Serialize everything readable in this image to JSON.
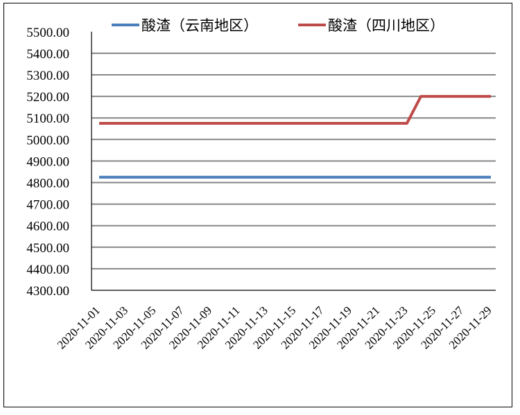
{
  "chart_data": {
    "type": "line",
    "title": "",
    "xlabel": "",
    "ylabel": "",
    "ylim": [
      4300,
      5500
    ],
    "y_ticks": [
      "4300.00",
      "4400.00",
      "4500.00",
      "4600.00",
      "4700.00",
      "4800.00",
      "4900.00",
      "5000.00",
      "5100.00",
      "5200.00",
      "5300.00",
      "5400.00",
      "5500.00"
    ],
    "grid": true,
    "legend_position": "top",
    "categories": [
      "2020-11-01",
      "2020-11-02",
      "2020-11-03",
      "2020-11-04",
      "2020-11-05",
      "2020-11-06",
      "2020-11-07",
      "2020-11-08",
      "2020-11-09",
      "2020-11-10",
      "2020-11-11",
      "2020-11-12",
      "2020-11-13",
      "2020-11-14",
      "2020-11-15",
      "2020-11-16",
      "2020-11-17",
      "2020-11-18",
      "2020-11-19",
      "2020-11-20",
      "2020-11-21",
      "2020-11-22",
      "2020-11-23",
      "2020-11-24",
      "2020-11-25",
      "2020-11-26",
      "2020-11-27",
      "2020-11-28",
      "2020-11-29"
    ],
    "x_tick_labels": [
      "2020-11-01",
      "2020-11-03",
      "2020-11-05",
      "2020-11-07",
      "2020-11-09",
      "2020-11-11",
      "2020-11-13",
      "2020-11-15",
      "2020-11-17",
      "2020-11-19",
      "2020-11-21",
      "2020-11-23",
      "2020-11-25",
      "2020-11-27",
      "2020-11-29"
    ],
    "series": [
      {
        "name": "酸渣（云南地区）",
        "color": "#4a7ebb",
        "values": [
          4825,
          4825,
          4825,
          4825,
          4825,
          4825,
          4825,
          4825,
          4825,
          4825,
          4825,
          4825,
          4825,
          4825,
          4825,
          4825,
          4825,
          4825,
          4825,
          4825,
          4825,
          4825,
          4825,
          4825,
          4825,
          4825,
          4825,
          4825,
          4825
        ]
      },
      {
        "name": "酸渣（四川地区）",
        "color": "#be4b48",
        "values": [
          5075,
          5075,
          5075,
          5075,
          5075,
          5075,
          5075,
          5075,
          5075,
          5075,
          5075,
          5075,
          5075,
          5075,
          5075,
          5075,
          5075,
          5075,
          5075,
          5075,
          5075,
          5075,
          5075,
          5200,
          5200,
          5200,
          5200,
          5200,
          5200
        ]
      }
    ]
  }
}
